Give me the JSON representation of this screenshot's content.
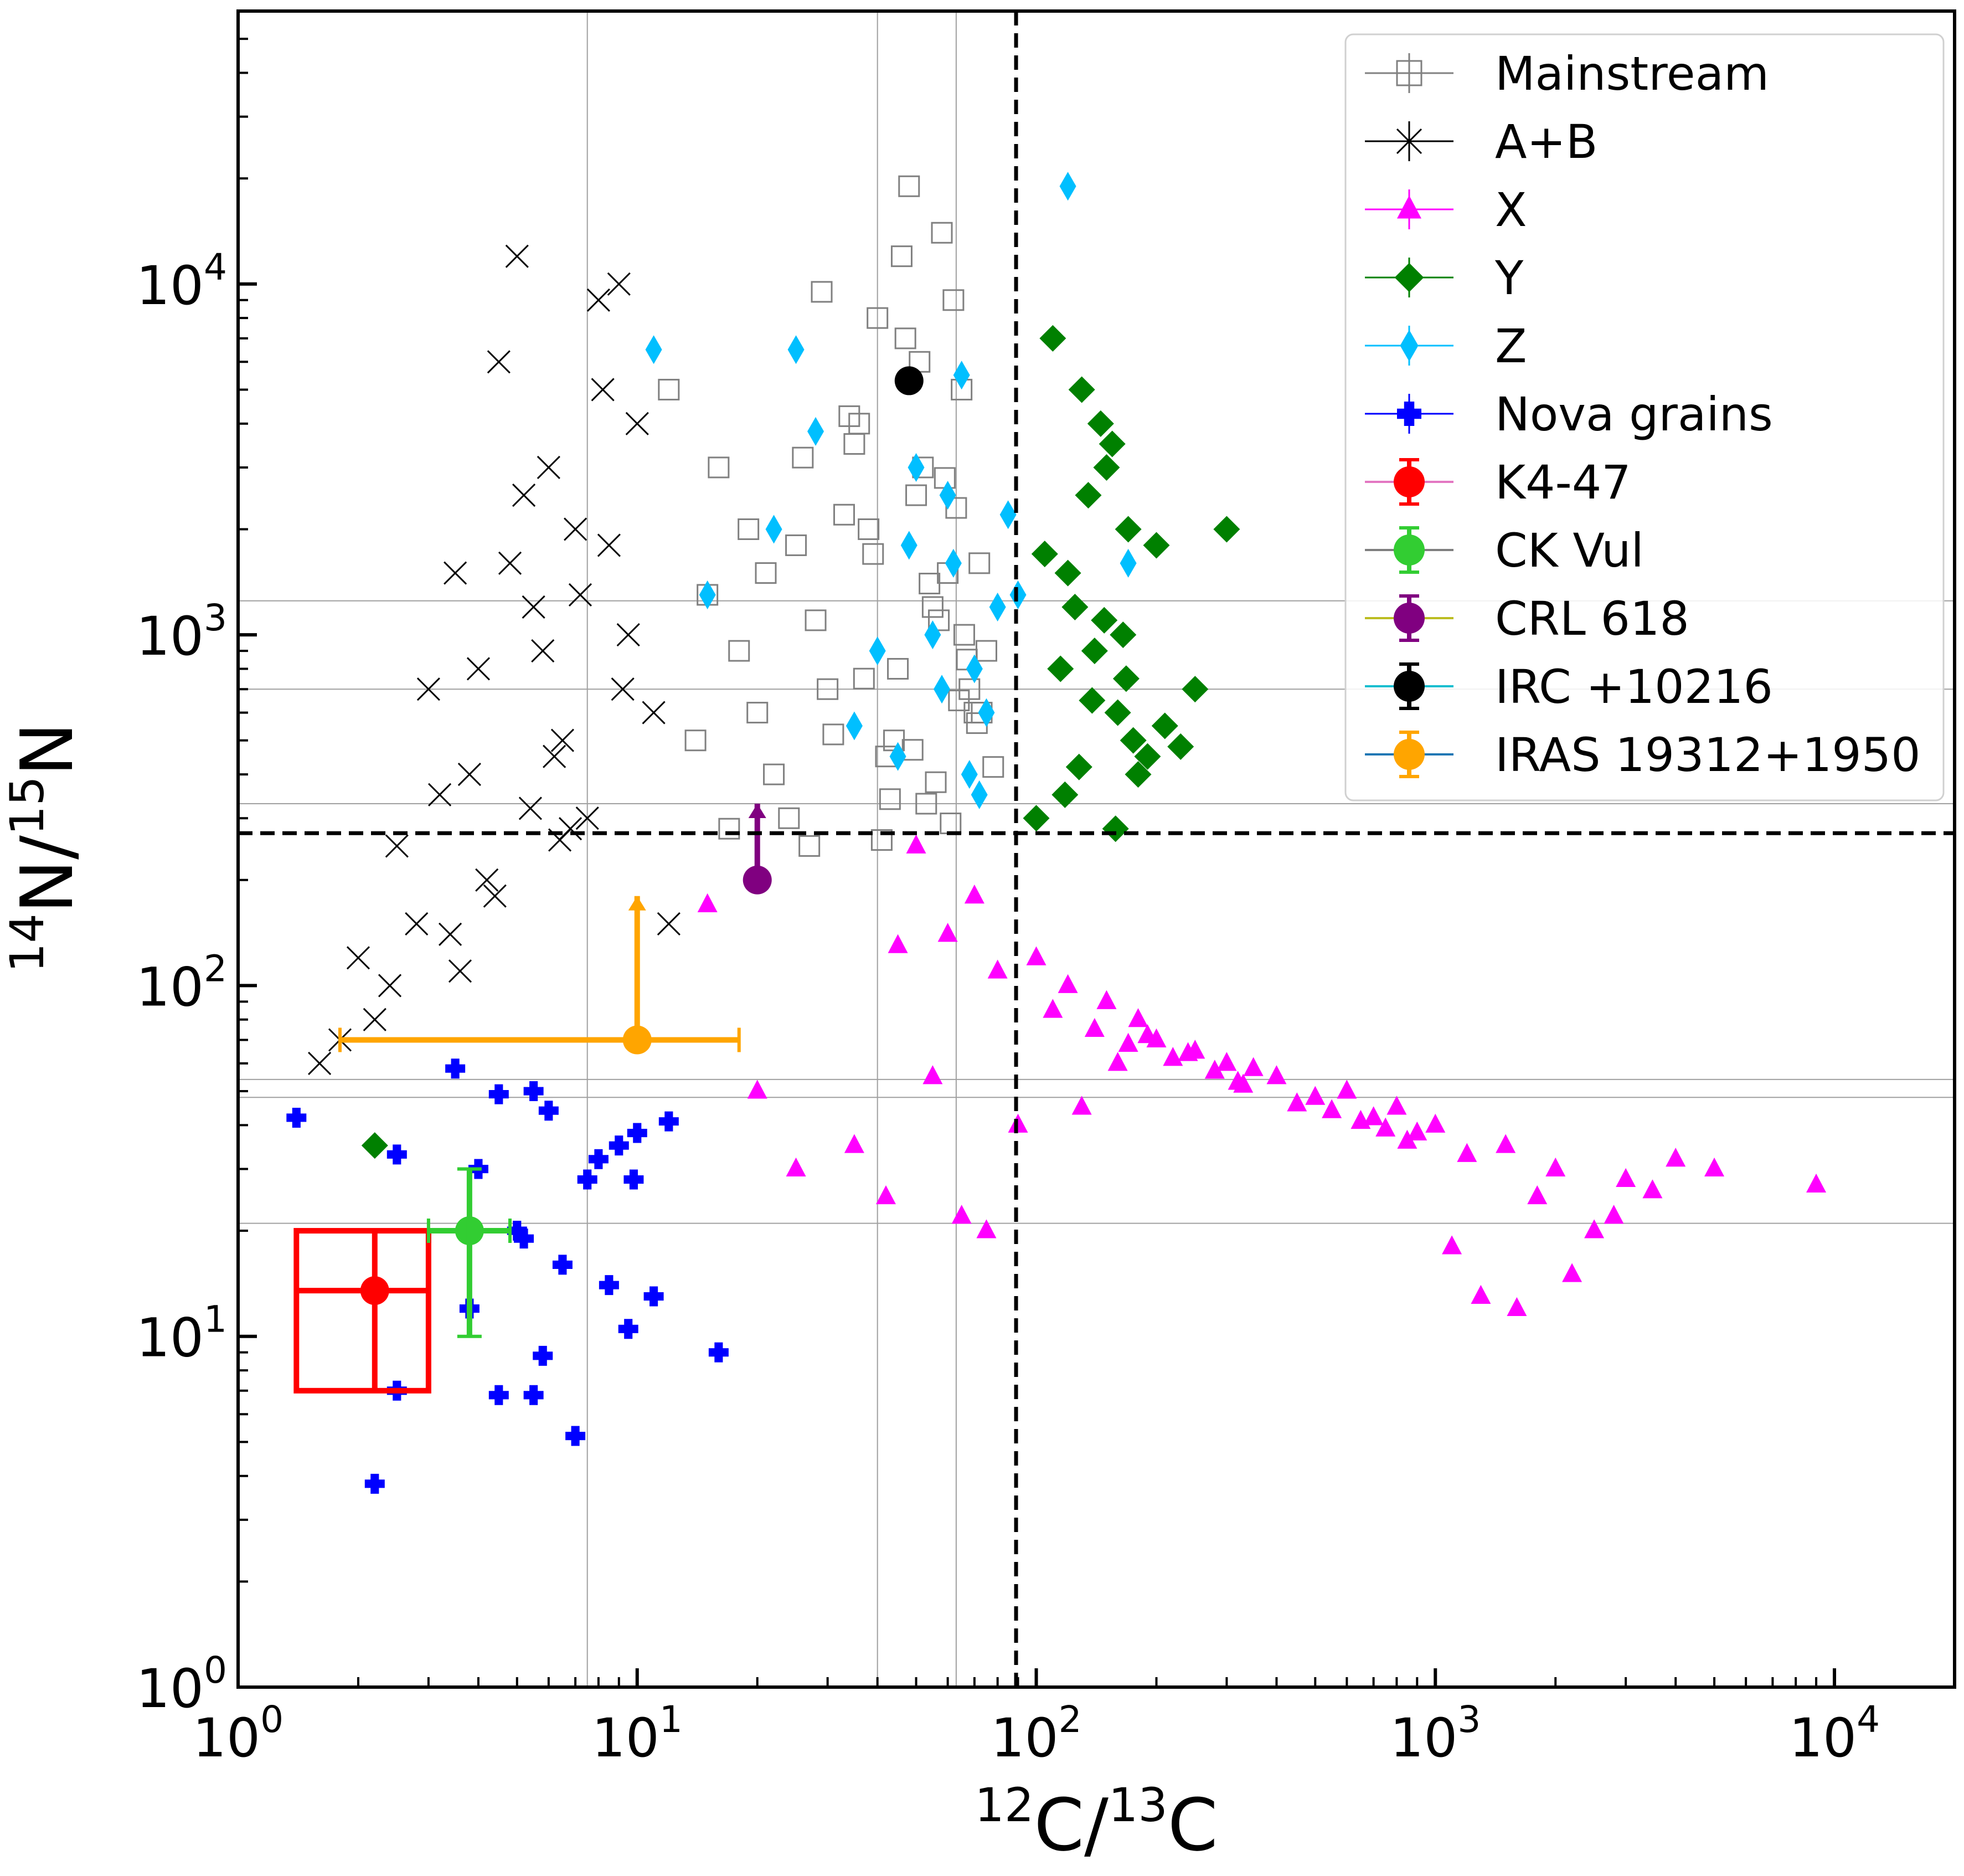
{
  "chart_data": {
    "type": "scatter",
    "title": "",
    "xlabel": {
      "base": "",
      "parts": [
        {
          "sup": "12"
        },
        {
          "txt": "C/"
        },
        {
          "sup": "13"
        },
        {
          "txt": "C"
        }
      ]
    },
    "ylabel": {
      "parts": [
        {
          "sup": "14"
        },
        {
          "txt": "N/"
        },
        {
          "sup": "15"
        },
        {
          "txt": "N"
        }
      ]
    },
    "x_scale": "log",
    "y_scale": "log",
    "xlim": [
      1,
      20000
    ],
    "ylim": [
      1,
      60000
    ],
    "x_ticks": [
      {
        "value": 1,
        "base": "10",
        "exp": "0"
      },
      {
        "value": 10,
        "base": "10",
        "exp": "1"
      },
      {
        "value": 100,
        "base": "10",
        "exp": "2"
      },
      {
        "value": 1000,
        "base": "10",
        "exp": "3"
      },
      {
        "value": 10000,
        "base": "10",
        "exp": "4"
      }
    ],
    "y_ticks": [
      {
        "value": 1,
        "base": "10",
        "exp": "0"
      },
      {
        "value": 10,
        "base": "10",
        "exp": "1"
      },
      {
        "value": 100,
        "base": "10",
        "exp": "2"
      },
      {
        "value": 1000,
        "base": "10",
        "exp": "3"
      },
      {
        "value": 10000,
        "base": "10",
        "exp": "4"
      }
    ],
    "solar_reference_lines": {
      "x": 89,
      "y": 272,
      "style": "dashed",
      "color": "#000000"
    },
    "legend_position": "top-right",
    "legend": [
      {
        "label": "Mainstream",
        "marker": "square-open",
        "color": "#808080"
      },
      {
        "label": "A+B",
        "marker": "x",
        "color": "#000000"
      },
      {
        "label": "X",
        "marker": "triangle",
        "color": "#ff00ff"
      },
      {
        "label": "Y",
        "marker": "diamond",
        "color": "#008000"
      },
      {
        "label": "Z",
        "marker": "thin-diamond",
        "color": "#00bfff"
      },
      {
        "label": "Nova grains",
        "marker": "plus",
        "color": "#0000ff"
      },
      {
        "label": "K4-47",
        "marker": "circle",
        "color": "#ff0000",
        "line": "#e377c2"
      },
      {
        "label": "CK Vul",
        "marker": "circle",
        "color": "#32cd32",
        "line": "#7f7f7f"
      },
      {
        "label": "CRL 618",
        "marker": "circle",
        "color": "#800080",
        "line": "#bcbd22"
      },
      {
        "label": "IRC +10216",
        "marker": "circle",
        "color": "#000000",
        "line": "#17becf"
      },
      {
        "label": "IRAS 19312+1950",
        "marker": "circle",
        "color": "#ffa500",
        "line": "#1f77b4"
      }
    ],
    "series": [
      {
        "name": "Mainstream",
        "marker": "square-open",
        "color": "#808080",
        "x": [
          60,
          45,
          52,
          70,
          38,
          55,
          65,
          42,
          75,
          50,
          30,
          25,
          22,
          28,
          35,
          20,
          18,
          15,
          12,
          58,
          48,
          62,
          40,
          68,
          33,
          44,
          53,
          72,
          36,
          27,
          46,
          56,
          64,
          24,
          17,
          78,
          39,
          51,
          59,
          66,
          43,
          31,
          21,
          26,
          37,
          49,
          57,
          63,
          71,
          34,
          19,
          16,
          14,
          41,
          47,
          54,
          61,
          67,
          73,
          29
        ],
        "y": [
          1500,
          800,
          3000,
          600,
          2000,
          1200,
          5000,
          450,
          900,
          2500,
          700,
          1800,
          400,
          1100,
          3500,
          600,
          900,
          1300,
          5000,
          14000,
          19000,
          9000,
          8000,
          700,
          2200,
          500,
          330,
          1600,
          4000,
          250,
          12000,
          380,
          650,
          300,
          280,
          420,
          1700,
          6000,
          2800,
          1000,
          340,
          520,
          1500,
          3200,
          750,
          470,
          1100,
          2300,
          560,
          4200,
          2000,
          3000,
          500,
          260,
          7000,
          1400,
          290,
          850,
          600,
          9500
        ]
      },
      {
        "name": "A+B",
        "marker": "x",
        "color": "#000000",
        "x": [
          5,
          4.5,
          6,
          7,
          8,
          3.5,
          3,
          9,
          10,
          4,
          5.5,
          6.5,
          7.5,
          2.5,
          2,
          3.8,
          4.8,
          5.2,
          6.2,
          8.5,
          9.5,
          11,
          3.2,
          2.8,
          4.2,
          5.8,
          6.8,
          7.2,
          2.2,
          1.8,
          1.6,
          3.6,
          4.4,
          5.4,
          6.4,
          8.2,
          9.2,
          12,
          2.4,
          3.4
        ],
        "y": [
          12000,
          6000,
          3000,
          2000,
          9000,
          1500,
          700,
          10000,
          4000,
          800,
          1200,
          500,
          300,
          250,
          120,
          400,
          1600,
          2500,
          450,
          1800,
          1000,
          600,
          350,
          150,
          200,
          900,
          280,
          1300,
          80,
          70,
          60,
          110,
          180,
          320,
          260,
          5000,
          700,
          150,
          100,
          140
        ]
      },
      {
        "name": "X",
        "marker": "triangle",
        "color": "#ff00ff",
        "x": [
          50,
          70,
          100,
          150,
          200,
          300,
          400,
          600,
          800,
          1000,
          1500,
          2000,
          3000,
          5000,
          9000,
          120,
          180,
          250,
          350,
          500,
          700,
          900,
          1200,
          1800,
          2500,
          4000,
          45,
          60,
          80,
          110,
          140,
          170,
          220,
          280,
          330,
          450,
          550,
          650,
          750,
          850,
          1100,
          1300,
          1600,
          2200,
          2800,
          3500,
          15,
          20,
          25,
          35,
          42,
          55,
          65,
          75,
          90,
          130,
          160,
          190,
          240,
          320
        ],
        "y": [
          250,
          180,
          120,
          90,
          70,
          60,
          55,
          50,
          45,
          40,
          35,
          30,
          28,
          30,
          27,
          100,
          80,
          65,
          58,
          48,
          42,
          38,
          33,
          25,
          20,
          32,
          130,
          140,
          110,
          85,
          75,
          68,
          62,
          57,
          52,
          46,
          44,
          41,
          39,
          36,
          18,
          13,
          12,
          15,
          22,
          26,
          170,
          50,
          30,
          35,
          25,
          55,
          22,
          20,
          40,
          45,
          60,
          72,
          64,
          53
        ]
      },
      {
        "name": "Y",
        "marker": "diamond",
        "color": "#008000",
        "x": [
          110,
          130,
          150,
          170,
          200,
          250,
          300,
          120,
          140,
          160,
          180,
          115,
          125,
          135,
          145,
          155,
          165,
          175,
          105,
          190,
          210,
          230,
          100,
          118,
          128,
          138,
          148,
          158,
          168,
          2.2
        ],
        "y": [
          7000,
          5000,
          3000,
          2000,
          1800,
          700,
          2000,
          1500,
          900,
          600,
          400,
          800,
          1200,
          2500,
          4000,
          3500,
          1000,
          500,
          1700,
          450,
          550,
          480,
          300,
          350,
          420,
          650,
          1100,
          280,
          750,
          35
        ]
      },
      {
        "name": "Z",
        "marker": "thin-diamond",
        "color": "#00bfff",
        "x": [
          11,
          25,
          120,
          15,
          22,
          28,
          48,
          55,
          60,
          65,
          70,
          75,
          80,
          85,
          50,
          45,
          58,
          62,
          68,
          72,
          40,
          35,
          90,
          170
        ],
        "y": [
          6500,
          6500,
          19000,
          1300,
          2000,
          3800,
          1800,
          1000,
          2500,
          5500,
          800,
          600,
          1200,
          2200,
          3000,
          450,
          700,
          1600,
          400,
          350,
          900,
          550,
          1300,
          1600
        ]
      },
      {
        "name": "Nova grains",
        "marker": "plus",
        "color": "#0000ff",
        "x": [
          1.4,
          2.2,
          2.5,
          3.5,
          4,
          4.5,
          5,
          5.5,
          6,
          6.5,
          7,
          8,
          8.5,
          9,
          9.5,
          10,
          11,
          12,
          16,
          2.5,
          4.5,
          5.5,
          3.8,
          5.2,
          5.8,
          7.5,
          9.8
        ],
        "y": [
          42,
          3.8,
          7,
          58,
          30,
          49,
          20,
          50,
          44,
          16,
          5.2,
          32,
          14,
          35,
          10.5,
          38,
          13,
          41,
          9,
          33,
          6.8,
          6.8,
          12,
          19,
          8.8,
          28,
          28
        ]
      },
      {
        "name": "K4-47",
        "marker": "circle",
        "color": "#ff0000",
        "x": [
          2.2
        ],
        "y": [
          13.5
        ]
      },
      {
        "name": "CK Vul",
        "marker": "circle",
        "color": "#32cd32",
        "x": [
          3.8
        ],
        "y": [
          20
        ]
      },
      {
        "name": "CRL 618",
        "marker": "circle",
        "color": "#800080",
        "x": [
          20
        ],
        "y": [
          200
        ]
      },
      {
        "name": "IRC +10216",
        "marker": "circle",
        "color": "#000000",
        "x": [
          48
        ],
        "y": [
          5300
        ]
      },
      {
        "name": "IRAS 19312+1950",
        "marker": "circle",
        "color": "#ffa500",
        "x": [
          10
        ],
        "y": [
          70
        ]
      }
    ],
    "error_bars": [
      {
        "name": "K4-47",
        "color": "#ff0000",
        "x": 2.2,
        "y": 13.5,
        "xerr": [
          1.4,
          3.0
        ],
        "yerr": [
          7,
          20
        ],
        "box": true
      },
      {
        "name": "CK Vul",
        "color": "#32cd32",
        "x": 3.8,
        "y": 20,
        "xerr": [
          3.0,
          4.8
        ],
        "yerr": [
          10,
          30
        ]
      },
      {
        "name": "CRL 618",
        "color": "#800080",
        "x": 20,
        "y": 200,
        "yerr": [
          200,
          330
        ],
        "arrow": "up"
      },
      {
        "name": "IRAS 19312+1950",
        "color": "#ffa500",
        "x": 10,
        "y": 70,
        "xerr": [
          1.8,
          18
        ],
        "yerr": [
          70,
          180
        ],
        "arrow": "up"
      }
    ]
  }
}
